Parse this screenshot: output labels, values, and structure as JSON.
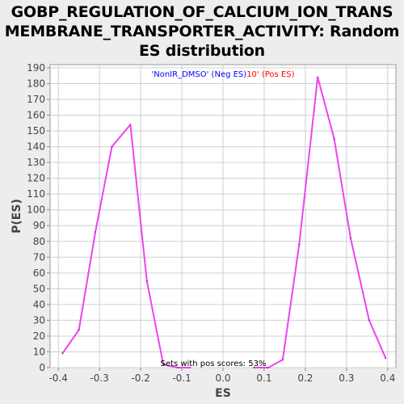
{
  "title": {
    "line1": "GOBP_REGULATION_OF_CALCIUM_ION_TRANS",
    "line2": "MEMBRANE_TRANSPORTER_ACTIVITY: Random",
    "line3": "ES distribution"
  },
  "chart_data": {
    "type": "line",
    "xlabel": "ES",
    "ylabel": "P(ES)",
    "xlim": [
      -0.42,
      0.42
    ],
    "ylim": [
      0,
      192
    ],
    "xticks": [
      -0.4,
      -0.3,
      -0.2,
      -0.1,
      0.0,
      0.1,
      0.2,
      0.3,
      0.4
    ],
    "xtick_labels": [
      "-0.4",
      "-0.3",
      "-0.2",
      "-0.1",
      "0.0",
      "0.1",
      "0.2",
      "0.3",
      "0.4"
    ],
    "yticks": [
      0,
      10,
      20,
      30,
      40,
      50,
      60,
      70,
      80,
      90,
      100,
      110,
      120,
      130,
      140,
      150,
      160,
      170,
      180,
      190
    ],
    "legend": {
      "neg_label": "'NonIR_DMSO' (Neg ES)",
      "neg_color": "#0000ff",
      "pos_label": "10' (Pos ES)",
      "pos_color": "#ff0000",
      "placement": "top-center"
    },
    "annotation": "Sets with pos scores: 53%",
    "line_color": "#ee44ee",
    "series": [
      {
        "x": [
          -0.39,
          -0.35,
          -0.31,
          -0.27,
          -0.225,
          -0.185,
          -0.145,
          -0.11,
          -0.08
        ],
        "y": [
          9,
          24,
          86,
          140,
          154,
          55,
          2,
          0,
          0
        ]
      },
      {
        "x": [
          0.075,
          0.11,
          0.145,
          0.185,
          0.23,
          0.27,
          0.31,
          0.355,
          0.395
        ],
        "y": [
          0,
          0,
          5,
          78,
          184,
          145,
          82,
          30,
          6
        ]
      }
    ]
  }
}
